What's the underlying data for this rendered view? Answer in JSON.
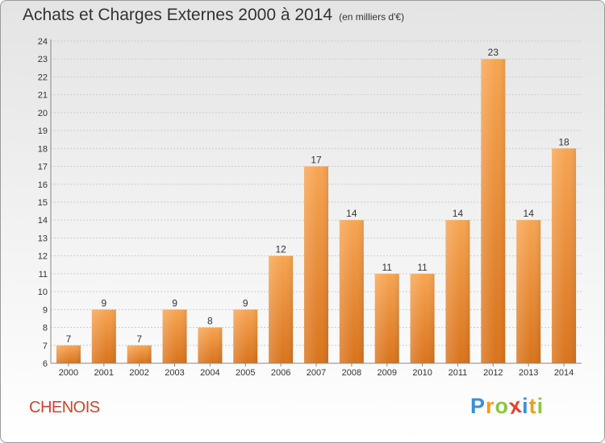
{
  "chart_data": {
    "type": "bar",
    "title": "Achats et Charges Externes 2000 à 2014",
    "subtitle": "(en milliers d'€)",
    "categories": [
      "2000",
      "2001",
      "2002",
      "2003",
      "2004",
      "2005",
      "2006",
      "2007",
      "2008",
      "2009",
      "2010",
      "2011",
      "2012",
      "2013",
      "2014"
    ],
    "values": [
      7,
      9,
      7,
      9,
      8,
      9,
      12,
      17,
      14,
      11,
      11,
      14,
      23,
      14,
      18
    ],
    "ylim": [
      6,
      24
    ],
    "yticks": [
      6,
      7,
      8,
      9,
      10,
      11,
      12,
      13,
      14,
      15,
      16,
      17,
      18,
      19,
      20,
      21,
      22,
      23,
      24
    ],
    "grid": true,
    "bar_color": "#f08a24"
  },
  "footer": {
    "place": "CHENOIS",
    "logo_letters": [
      "P",
      "r",
      "o",
      "x",
      "i",
      "t",
      "i"
    ],
    "logo_colors": [
      "#3a8fd6",
      "#f39c1f",
      "#8cc63f",
      "#e8412c",
      "#3a8fd6",
      "#f39c1f",
      "#8cc63f"
    ]
  }
}
